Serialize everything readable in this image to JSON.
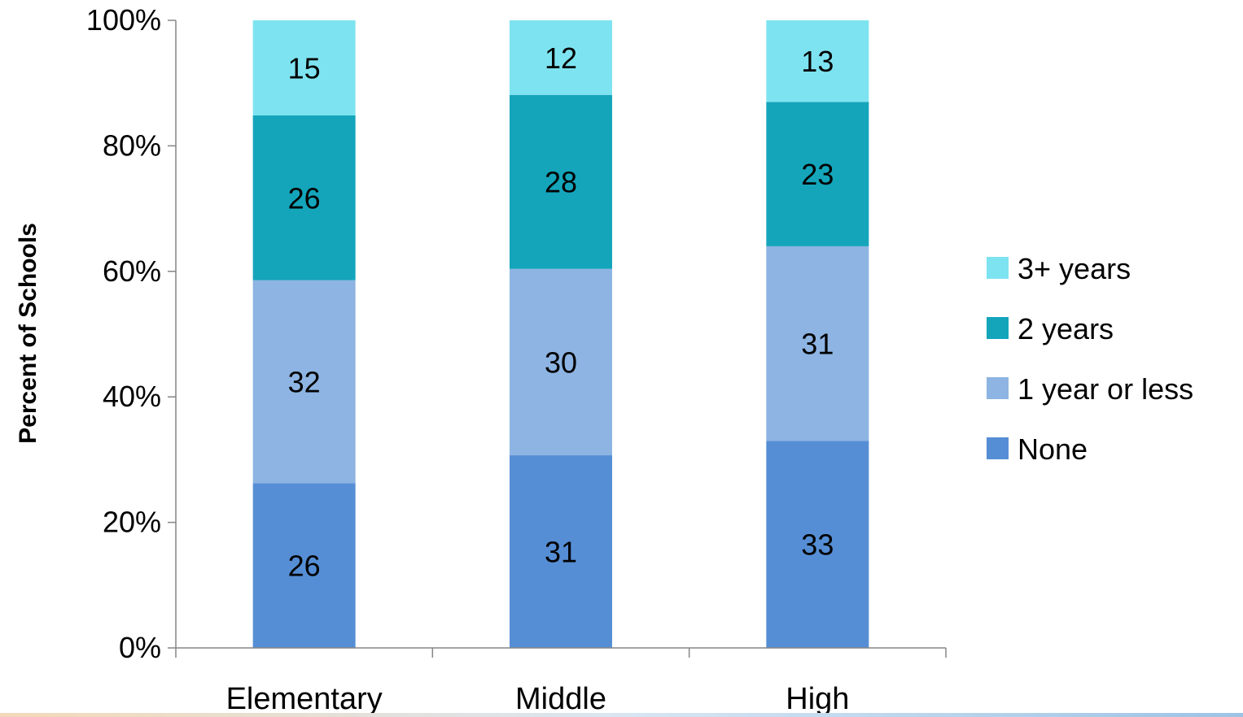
{
  "chart_data": {
    "type": "bar",
    "stacked": true,
    "categories": [
      "Elementary",
      "Middle",
      "High"
    ],
    "series": [
      {
        "name": "None",
        "values": [
          26,
          31,
          33
        ],
        "color": "#558ed5"
      },
      {
        "name": "1 year or less",
        "values": [
          32,
          30,
          31
        ],
        "color": "#8db4e2"
      },
      {
        "name": "2 years",
        "values": [
          26,
          28,
          23
        ],
        "color": "#14a5bb"
      },
      {
        "name": "3+ years",
        "values": [
          15,
          12,
          13
        ],
        "color": "#7ee3f0"
      }
    ],
    "title": "",
    "xlabel": "",
    "ylabel": "Percent of Schools",
    "ylim": [
      0,
      100
    ],
    "yticks": [
      "0%",
      "20%",
      "40%",
      "60%",
      "80%",
      "100%"
    ],
    "grid": false,
    "legend_position": "right"
  }
}
